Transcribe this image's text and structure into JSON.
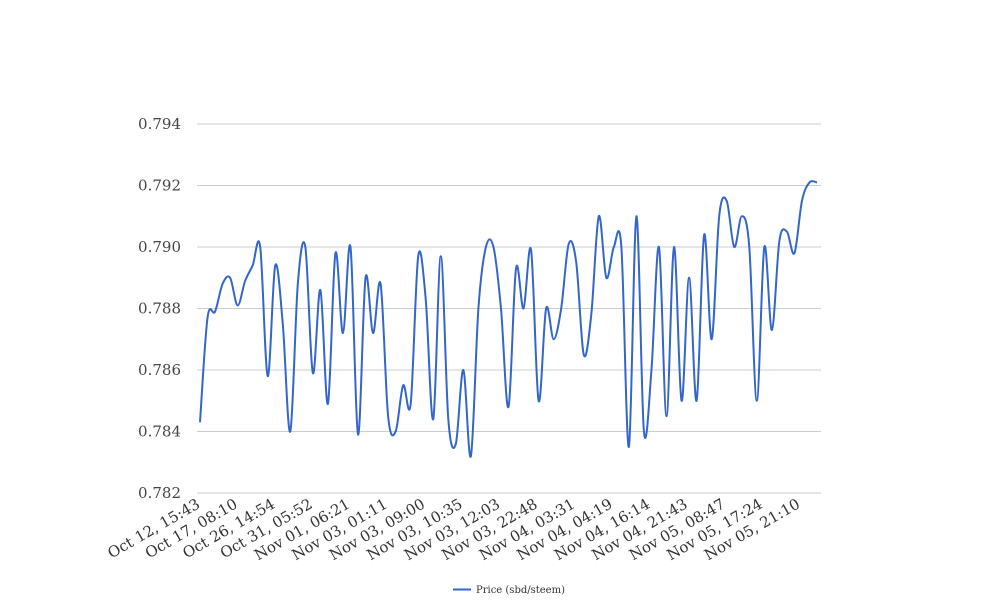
{
  "chart_data": {
    "type": "line",
    "title": "",
    "xlabel": "",
    "ylabel": "",
    "ylim": [
      0.782,
      0.794
    ],
    "yticks": [
      0.782,
      0.784,
      0.786,
      0.788,
      0.79,
      0.792,
      0.794
    ],
    "ytick_labels": [
      "0.782",
      "0.784",
      "0.786",
      "0.788",
      "0.790",
      "0.792",
      "0.794"
    ],
    "xtick_labels": [
      "Oct 12, 15:43",
      "Oct 17, 08:10",
      "Oct 26, 14:54",
      "Oct 31, 05:52",
      "Nov 01, 06:21",
      "Nov 03, 01:11",
      "Nov 03, 09:00",
      "Nov 03, 10:35",
      "Nov 03, 12:03",
      "Nov 03, 22:48",
      "Nov 04, 03:31",
      "Nov 04, 04:19",
      "Nov 04, 16:14",
      "Nov 04, 21:43",
      "Nov 05, 08:47",
      "Nov 05, 17:24",
      "Nov 05, 21:10"
    ],
    "grid": true,
    "legend_position": "bottom",
    "series": [
      {
        "name": "Price (sbd/steem)",
        "color": "#3366cc",
        "values": [
          0.7843,
          0.7877,
          0.7879,
          0.7888,
          0.789,
          0.7881,
          0.7889,
          0.7894,
          0.79,
          0.7858,
          0.7894,
          0.7875,
          0.784,
          0.7888,
          0.79,
          0.7859,
          0.7886,
          0.7849,
          0.7898,
          0.7872,
          0.79,
          0.7839,
          0.789,
          0.7872,
          0.7888,
          0.7845,
          0.784,
          0.7855,
          0.7849,
          0.7897,
          0.7883,
          0.7844,
          0.7897,
          0.7844,
          0.7836,
          0.786,
          0.7832,
          0.788,
          0.79,
          0.79,
          0.788,
          0.7848,
          0.7893,
          0.788,
          0.7899,
          0.785,
          0.788,
          0.787,
          0.788,
          0.7901,
          0.7895,
          0.7865,
          0.7878,
          0.791,
          0.789,
          0.79,
          0.79,
          0.7835,
          0.791,
          0.784,
          0.786,
          0.79,
          0.7845,
          0.79,
          0.785,
          0.789,
          0.785,
          0.7904,
          0.787,
          0.791,
          0.7915,
          0.79,
          0.791,
          0.79,
          0.785,
          0.79,
          0.7873,
          0.7902,
          0.7905,
          0.7898,
          0.7915,
          0.7921,
          0.7921
        ]
      }
    ]
  }
}
